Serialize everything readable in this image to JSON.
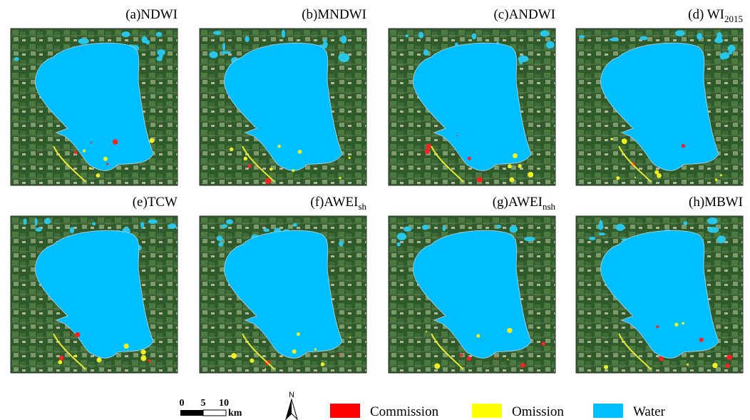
{
  "panels": [
    {
      "title": "(a)NDWI"
    },
    {
      "title": "(b)MNDWI"
    },
    {
      "title": "(c)ANDWI"
    },
    {
      "title": "(d) WI",
      "title_sub": "2015"
    },
    {
      "title": "(e)TCW"
    },
    {
      "title": "(f)AWEI",
      "title_sub": "sh"
    },
    {
      "title": "(g)AWEI",
      "title_sub": "nsh"
    },
    {
      "title": "(h)MBWI"
    }
  ],
  "scale_bar": {
    "labels": [
      "0",
      "5",
      "10"
    ],
    "unit": "km"
  },
  "north_arrow": "N",
  "legend": [
    {
      "label": "Commission",
      "color": "#ff0000"
    },
    {
      "label": "Omission",
      "color": "#ffff00"
    },
    {
      "label": "Water",
      "color": "#00bfff"
    }
  ]
}
